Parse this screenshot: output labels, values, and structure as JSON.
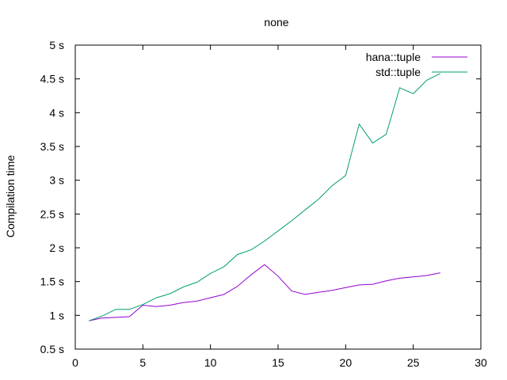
{
  "chart_data": {
    "type": "line",
    "title": "none",
    "ylabel": "Compilation time",
    "xlabel": "",
    "xlim": [
      0,
      30
    ],
    "ylim": [
      0.5,
      5
    ],
    "xticks": [
      0,
      5,
      10,
      15,
      20,
      25,
      30
    ],
    "yticks": [
      0.5,
      1,
      1.5,
      2,
      2.5,
      3,
      3.5,
      4,
      4.5,
      5
    ],
    "ytick_labels": [
      "0.5 s",
      "1 s",
      "1.5 s",
      "2 s",
      "2.5 s",
      "3 s",
      "3.5 s",
      "4 s",
      "4.5 s",
      "5 s"
    ],
    "grid": false,
    "legend_position": "top-right",
    "series": [
      {
        "name": "hana::tuple",
        "color": "#9400d3",
        "x": [
          1,
          2,
          3,
          4,
          5,
          6,
          7,
          8,
          9,
          10,
          11,
          12,
          13,
          14,
          15,
          16,
          17,
          18,
          19,
          20,
          21,
          22,
          23,
          24,
          25,
          26,
          27
        ],
        "y": [
          0.92,
          0.96,
          0.97,
          0.98,
          1.15,
          1.13,
          1.15,
          1.19,
          1.21,
          1.26,
          1.31,
          1.43,
          1.6,
          1.75,
          1.58,
          1.36,
          1.31,
          1.34,
          1.37,
          1.41,
          1.45,
          1.46,
          1.51,
          1.55,
          1.57,
          1.59,
          1.63
        ]
      },
      {
        "name": "std::tuple",
        "color": "#009e73",
        "x": [
          1,
          2,
          3,
          4,
          5,
          6,
          7,
          8,
          9,
          10,
          11,
          12,
          13,
          14,
          15,
          16,
          17,
          18,
          19,
          20,
          21,
          22,
          23,
          24,
          25,
          26,
          27
        ],
        "y": [
          0.92,
          0.99,
          1.09,
          1.09,
          1.16,
          1.26,
          1.32,
          1.42,
          1.49,
          1.62,
          1.72,
          1.9,
          1.97,
          2.1,
          2.25,
          2.4,
          2.56,
          2.72,
          2.92,
          3.07,
          3.83,
          3.55,
          3.68,
          4.37,
          4.28,
          4.48,
          4.58
        ]
      }
    ]
  }
}
